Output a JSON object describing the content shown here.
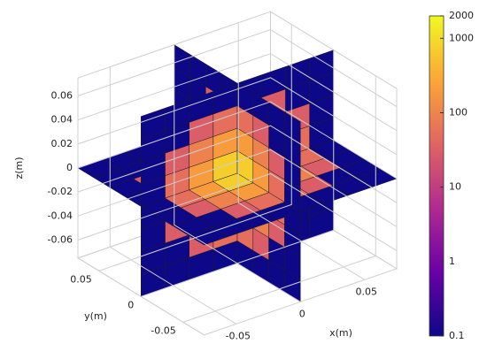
{
  "chart_data": {
    "type": "slice3d",
    "xlabel": "x(m)",
    "ylabel": "y(m)",
    "zlabel": "z(m)",
    "xlim": [
      -0.075,
      0.075
    ],
    "ylim": [
      -0.075,
      0.075
    ],
    "zlim": [
      -0.075,
      0.075
    ],
    "xticks": [
      -0.05,
      0,
      0.05
    ],
    "yticks": [
      -0.05,
      0,
      0.05
    ],
    "zticks": [
      -0.06,
      -0.04,
      -0.02,
      0,
      0.02,
      0.04,
      0.06
    ],
    "grid": true,
    "edge_color": "#1a1a2e",
    "colorbar": {
      "log": true,
      "lim": [
        0.1,
        2000
      ],
      "ticks": [
        0.1,
        1,
        10,
        100,
        1000,
        2000
      ],
      "colormap": [
        "#0d0887",
        "#6a00a8",
        "#b12a90",
        "#e16462",
        "#fca636",
        "#f0f921"
      ]
    },
    "slices": [
      {
        "axis": "x",
        "at": 0,
        "values": [
          [
            0.1,
            0.1,
            0.1,
            0.1,
            0.1,
            0.1,
            0.1,
            0.1
          ],
          [
            0.1,
            0.1,
            30,
            51,
            51,
            30,
            0.1,
            0.1
          ],
          [
            0.1,
            30,
            94,
            200,
            200,
            94,
            30,
            0.1
          ],
          [
            0.1,
            51,
            200,
            720,
            720,
            200,
            51,
            0.1
          ],
          [
            0.1,
            51,
            200,
            720,
            720,
            200,
            51,
            0.1
          ],
          [
            0.1,
            30,
            94,
            200,
            200,
            94,
            30,
            0.1
          ],
          [
            0.1,
            0.1,
            30,
            51,
            51,
            30,
            0.1,
            0.1
          ],
          [
            0.1,
            0.1,
            0.1,
            0.1,
            0.1,
            0.1,
            0.1,
            0.1
          ]
        ]
      },
      {
        "axis": "y",
        "at": 0,
        "values": [
          [
            0.1,
            0.1,
            0.1,
            0.1,
            0.1,
            0.1,
            0.1,
            0.1
          ],
          [
            0.1,
            0.1,
            30,
            51,
            51,
            30,
            0.1,
            0.1
          ],
          [
            0.1,
            30,
            94,
            200,
            200,
            94,
            30,
            0.1
          ],
          [
            0.1,
            51,
            200,
            720,
            720,
            200,
            51,
            0.1
          ],
          [
            0.1,
            51,
            200,
            720,
            720,
            200,
            51,
            0.1
          ],
          [
            0.1,
            30,
            94,
            200,
            200,
            94,
            30,
            0.1
          ],
          [
            0.1,
            0.1,
            30,
            51,
            51,
            30,
            0.1,
            0.1
          ],
          [
            0.1,
            0.1,
            0.1,
            0.1,
            0.1,
            0.1,
            0.1,
            0.1
          ]
        ]
      },
      {
        "axis": "z",
        "at": 0,
        "values": [
          [
            0.1,
            0.1,
            0.1,
            0.1,
            0.1,
            0.1,
            0.1,
            0.1
          ],
          [
            0.1,
            0.1,
            30,
            51,
            51,
            30,
            0.1,
            0.1
          ],
          [
            0.1,
            30,
            94,
            200,
            200,
            94,
            30,
            0.1
          ],
          [
            0.1,
            51,
            200,
            720,
            720,
            200,
            51,
            0.1
          ],
          [
            0.1,
            51,
            200,
            720,
            720,
            200,
            51,
            0.1
          ],
          [
            0.1,
            30,
            94,
            200,
            200,
            94,
            30,
            0.1
          ],
          [
            0.1,
            0.1,
            30,
            51,
            51,
            30,
            0.1,
            0.1
          ],
          [
            0.1,
            0.1,
            0.1,
            0.1,
            0.1,
            0.1,
            0.1,
            0.1
          ]
        ]
      }
    ]
  }
}
